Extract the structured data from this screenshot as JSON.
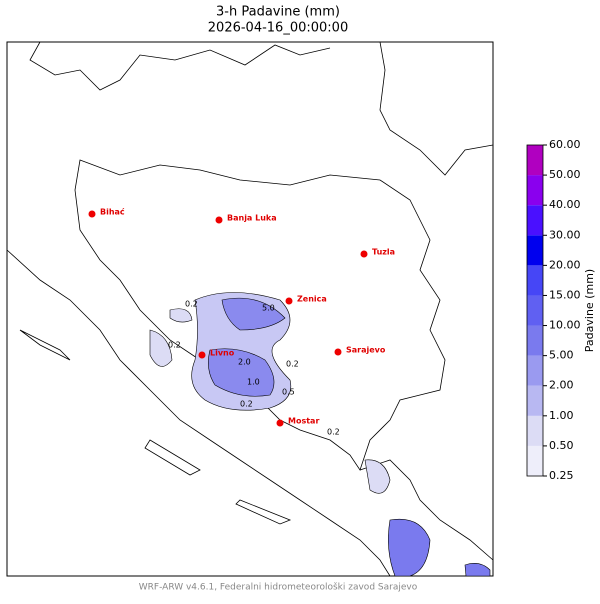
{
  "header": {
    "title": "3-h Padavine (mm)",
    "subtitle": "2026-04-16_00:00:00"
  },
  "cities": [
    {
      "name": "Bihać"
    },
    {
      "name": "Banja Luka"
    },
    {
      "name": "Tuzla"
    },
    {
      "name": "Zenica"
    },
    {
      "name": "Livno"
    },
    {
      "name": "Sarajevo"
    },
    {
      "name": "Mostar"
    }
  ],
  "contour_labels": [
    "0.2",
    "5.0",
    "2.0",
    "1.0",
    "0.5",
    "0.2",
    "0.2",
    "0.2",
    "0.2"
  ],
  "colorbar": {
    "label": "Padavine (mm)",
    "ticks": [
      {
        "value": 0.25,
        "label": "0.25"
      },
      {
        "value": 0.5,
        "label": "0.50"
      },
      {
        "value": 1,
        "label": "1.00"
      },
      {
        "value": 2,
        "label": "2.00"
      },
      {
        "value": 5,
        "label": "5.00"
      },
      {
        "value": 10,
        "label": "10.00"
      },
      {
        "value": 15,
        "label": "15.00"
      },
      {
        "value": 20,
        "label": "20.00"
      },
      {
        "value": 30,
        "label": "30.00"
      },
      {
        "value": 40,
        "label": "40.00"
      },
      {
        "value": 50,
        "label": "50.00"
      },
      {
        "value": 60,
        "label": "60.00"
      }
    ],
    "colors": [
      "#eeeefa",
      "#dcdcf5",
      "#b8b8f2",
      "#9a9af0",
      "#7a7aee",
      "#6060f2",
      "#4646f6",
      "#0000ee",
      "#4a10ff",
      "#8a00ee",
      "#b000c0"
    ]
  },
  "footer": "WRF-ARW v4.6.1, Federalni hidrometeorološki zavod Sarajevo"
}
